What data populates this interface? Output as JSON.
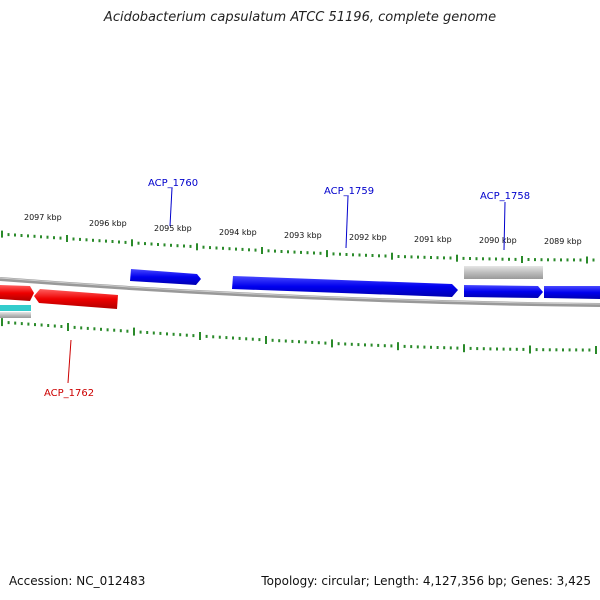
{
  "title": "Acidobacterium capsulatum ATCC 51196, complete genome",
  "accession": "Accession: NC_012483",
  "stats": "Topology: circular; Length: 4,127,356 bp; Genes: 3,425",
  "kbp_labels": [
    "2097 kbp",
    "2096 kbp",
    "2095 kbp",
    "2094 kbp",
    "2093 kbp",
    "2092 kbp",
    "2091 kbp",
    "2090 kbp",
    "2089 kbp"
  ],
  "gene_labels": {
    "acp_1760": "ACP_1760",
    "acp_1759": "ACP_1759",
    "acp_1758": "ACP_1758",
    "acp_1762": "ACP_1762"
  },
  "colors": {
    "forward_gene": "#0000ee",
    "reverse_gene": "#ee0000",
    "other_gene": "#bbbbbb",
    "rna_gene": "#33cccc",
    "ticks": "#2a8a2a",
    "backbone": "#888888"
  }
}
